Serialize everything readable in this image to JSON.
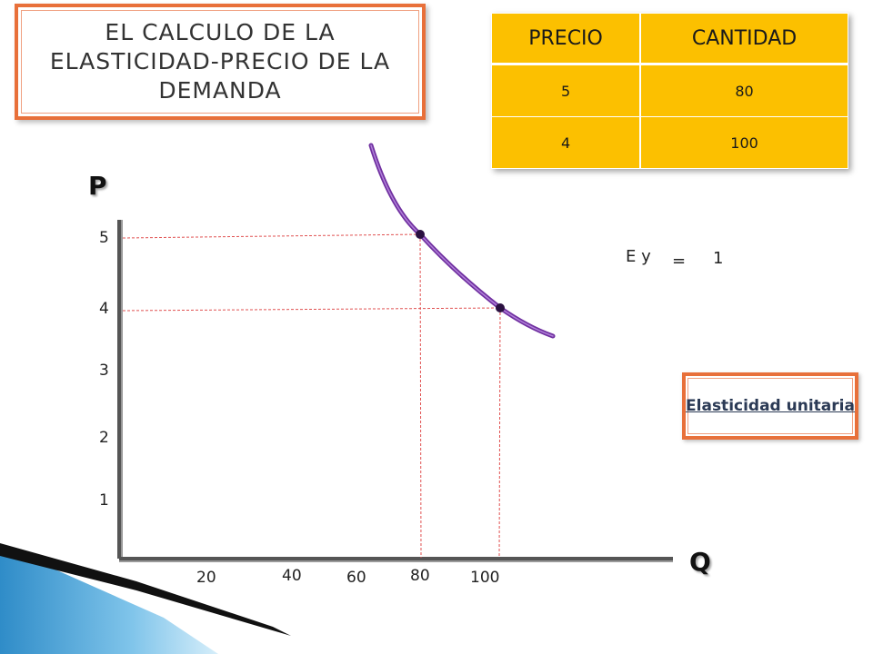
{
  "title": "EL CALCULO DE LA ELASTICIDAD-PRECIO DE LA DEMANDA",
  "table": {
    "headers": [
      "PRECIO",
      "CANTIDAD"
    ],
    "rows": [
      [
        "5",
        "80"
      ],
      [
        "4",
        "100"
      ]
    ]
  },
  "axes": {
    "y_label": "P",
    "x_label": "Q",
    "y_ticks": [
      "5",
      "4",
      "3",
      "2",
      "1"
    ],
    "x_ticks": [
      "20",
      "40",
      "60",
      "80",
      "100"
    ]
  },
  "elasticity": {
    "label": "E y",
    "equals": "=",
    "value": "1"
  },
  "badge": "Elasticidad unitaria",
  "points": [
    {
      "q": 80,
      "p": 5
    },
    {
      "q": 100,
      "p": 4
    }
  ],
  "colors": {
    "curve": "#7030a0",
    "guide": "#e05050",
    "table_fill": "#fcc000",
    "border": "#e8703a"
  }
}
